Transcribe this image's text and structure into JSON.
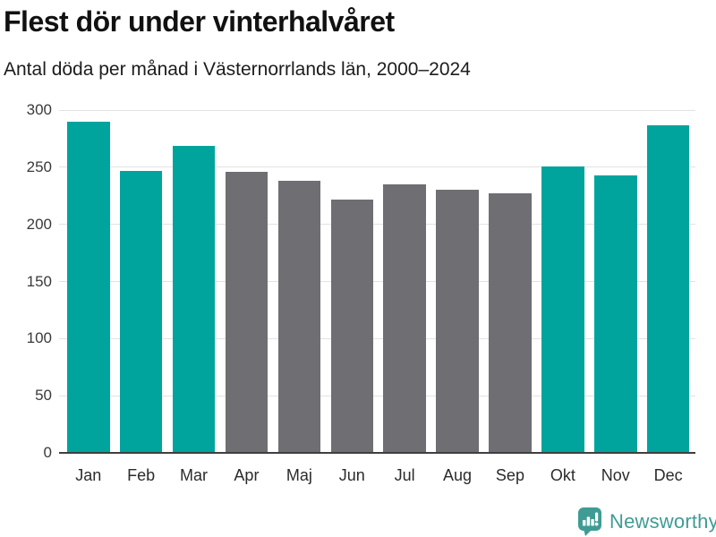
{
  "header": {
    "title": "Flest dör under vinterhalvåret",
    "subtitle": "Antal döda per månad i Västernorrlands län, 2000–2024"
  },
  "chart_data": {
    "type": "bar",
    "title": "Flest dör under vinterhalvåret",
    "subtitle": "Antal döda per månad i Västernorrlands län, 2000–2024",
    "categories": [
      "Jan",
      "Feb",
      "Mar",
      "Apr",
      "Maj",
      "Jun",
      "Jul",
      "Aug",
      "Sep",
      "Okt",
      "Nov",
      "Dec"
    ],
    "values": [
      290,
      247,
      269,
      246,
      238,
      222,
      235,
      230,
      227,
      251,
      243,
      287
    ],
    "highlighted": [
      true,
      true,
      true,
      false,
      false,
      false,
      false,
      false,
      false,
      true,
      true,
      true
    ],
    "xlabel": "",
    "ylabel": "",
    "ylim": [
      0,
      300
    ],
    "yticks": [
      0,
      50,
      100,
      150,
      200,
      250,
      300
    ],
    "grid": true,
    "legend": "none",
    "colors": {
      "highlight": "#00a49c",
      "muted": "#6e6e73",
      "gridline": "#e2e2e2",
      "axis_line": "#3f3f3f"
    }
  },
  "footer": {
    "brand": "Newsworthy",
    "brand_color": "#3f9c95"
  },
  "icons": {
    "brand_logo": "bar-chart-speech-bubble-icon"
  }
}
